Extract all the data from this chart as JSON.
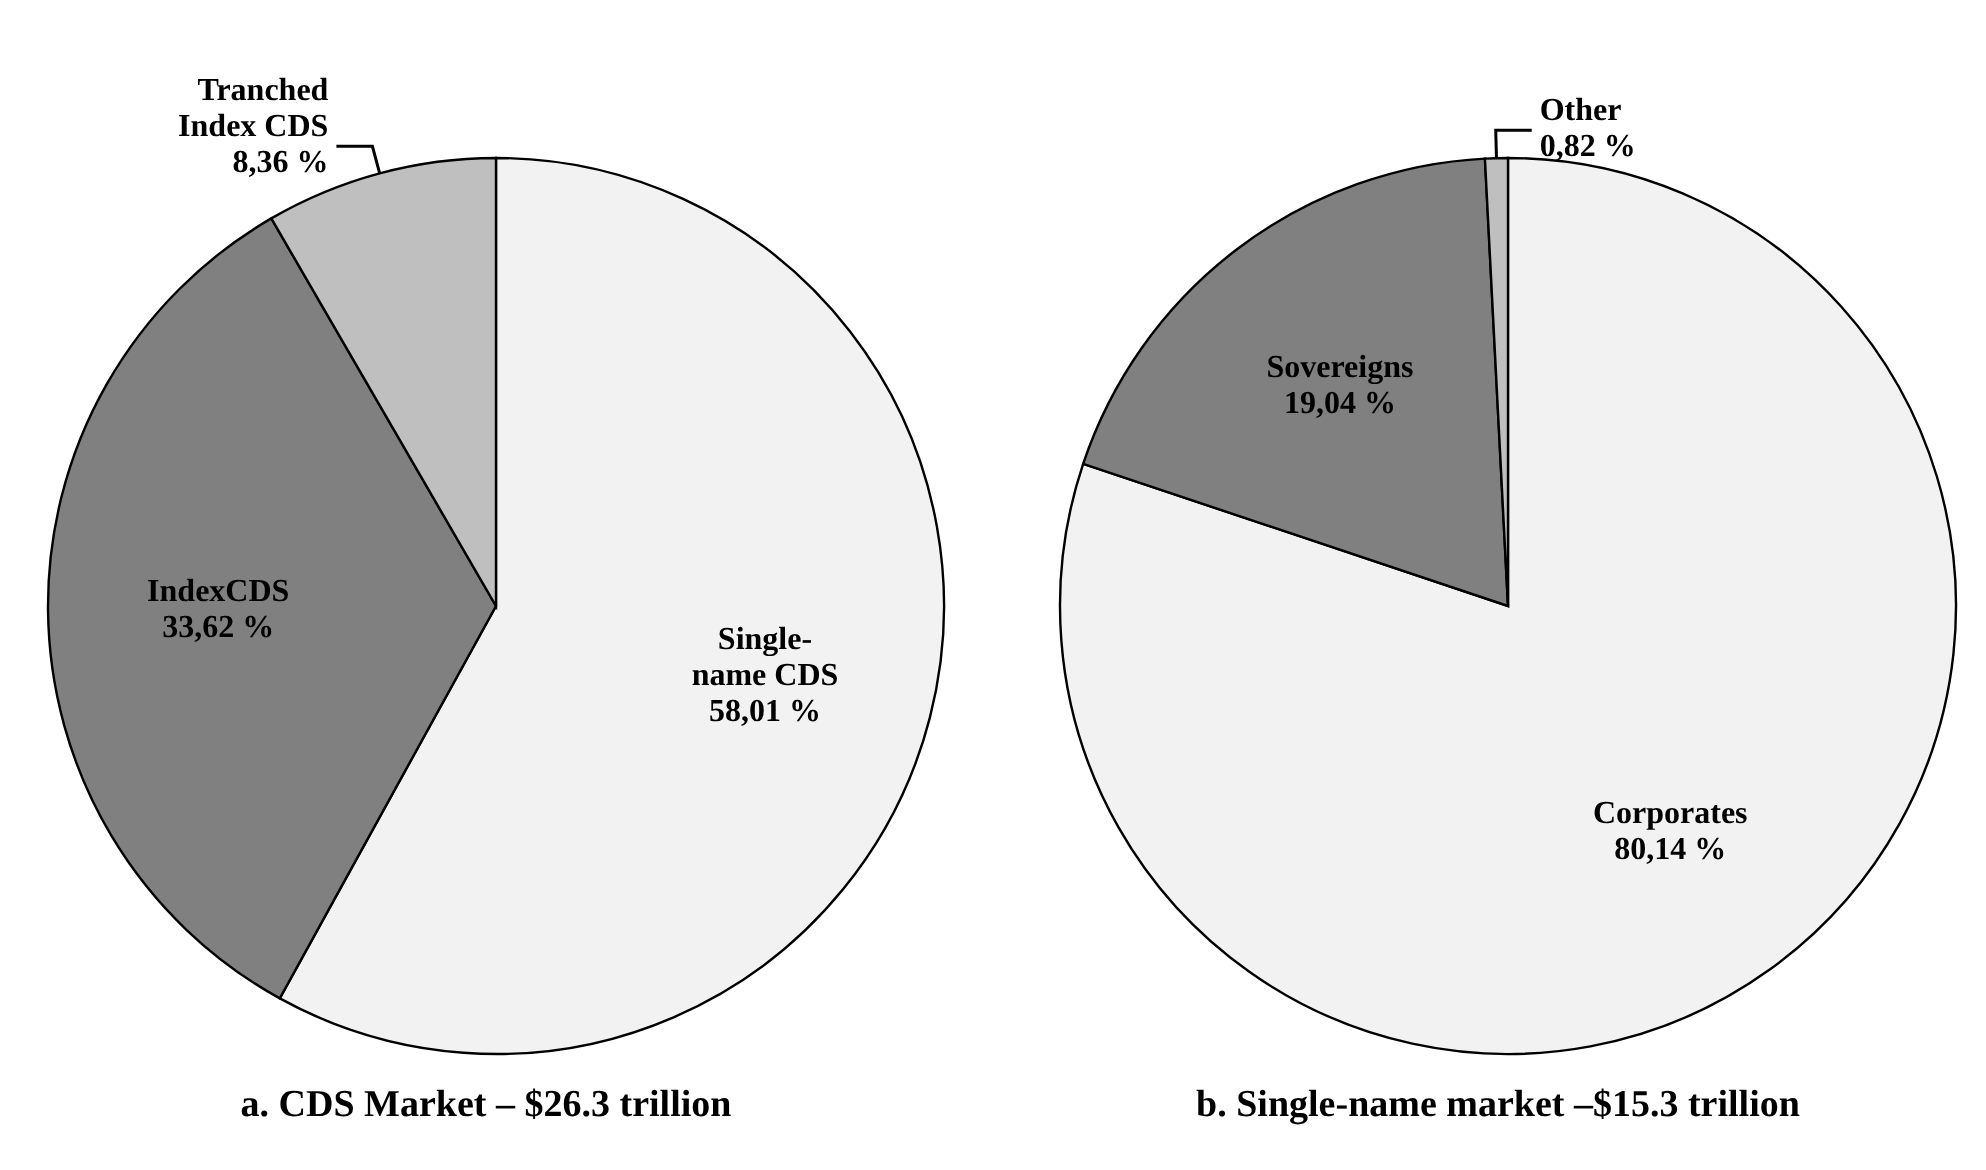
{
  "chart_data": [
    {
      "type": "pie",
      "title": "a. CDS Market – $26.3 trillion",
      "categories": [
        "Single-name CDS",
        "IndexCDS",
        "Tranched Index CDS"
      ],
      "values": [
        58.01,
        33.62,
        8.36
      ],
      "colors": [
        "#f2f2f2",
        "#808080",
        "#bfbfbf"
      ],
      "value_labels": [
        "58,01 %",
        "33,62 %",
        "8,36 %"
      ]
    },
    {
      "type": "pie",
      "title": "b. Single-name market –$15.3 trillion",
      "categories": [
        "Corporates",
        "Sovereigns",
        "Other"
      ],
      "values": [
        80.14,
        19.04,
        0.82
      ],
      "colors": [
        "#f2f2f2",
        "#808080",
        "#bfbfbf"
      ],
      "value_labels": [
        "80,14 %",
        "19,04 %",
        "0,82 %"
      ]
    }
  ]
}
